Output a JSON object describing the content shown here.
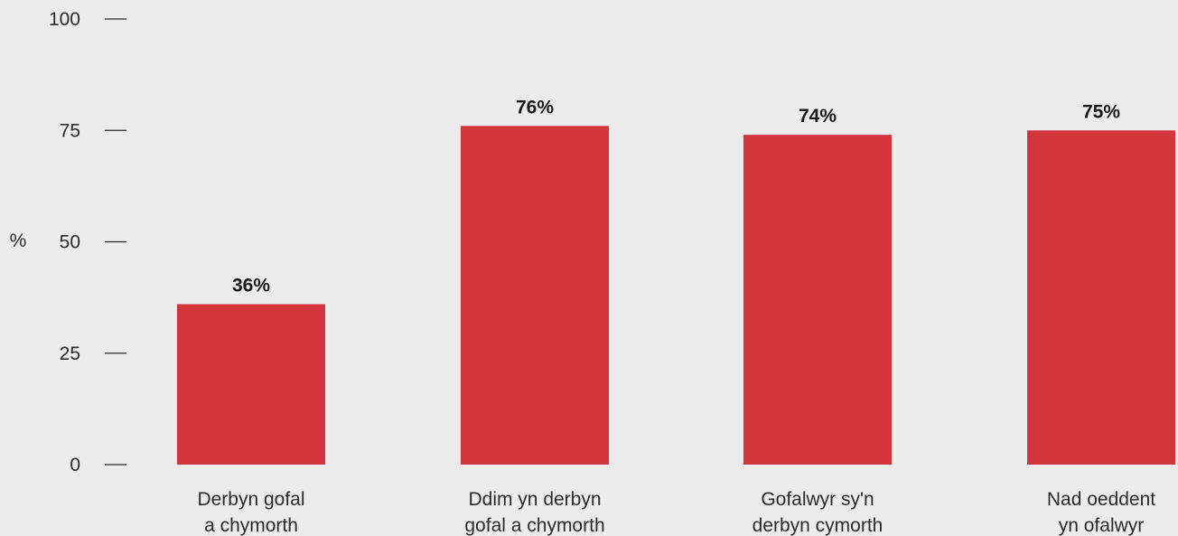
{
  "chart_data": {
    "type": "bar",
    "title": "",
    "xlabel": "",
    "ylabel": "%",
    "ylim": [
      0,
      100
    ],
    "yticks": [
      0,
      25,
      50,
      75,
      100
    ],
    "grid": false,
    "categories": [
      [
        "Derbyn gofal",
        "a chymorth"
      ],
      [
        "Ddim yn derbyn",
        "gofal a chymorth"
      ],
      [
        "Gofalwyr sy'n",
        "derbyn cymorth"
      ],
      [
        "Nad oeddent",
        "yn ofalwyr"
      ]
    ],
    "values": [
      36,
      76,
      74,
      75
    ],
    "data_labels": [
      "36%",
      "76%",
      "74%",
      "75%"
    ],
    "colors": {
      "bar": "#d3353d",
      "background": "#ececec",
      "text": "#2b2b2b"
    }
  }
}
